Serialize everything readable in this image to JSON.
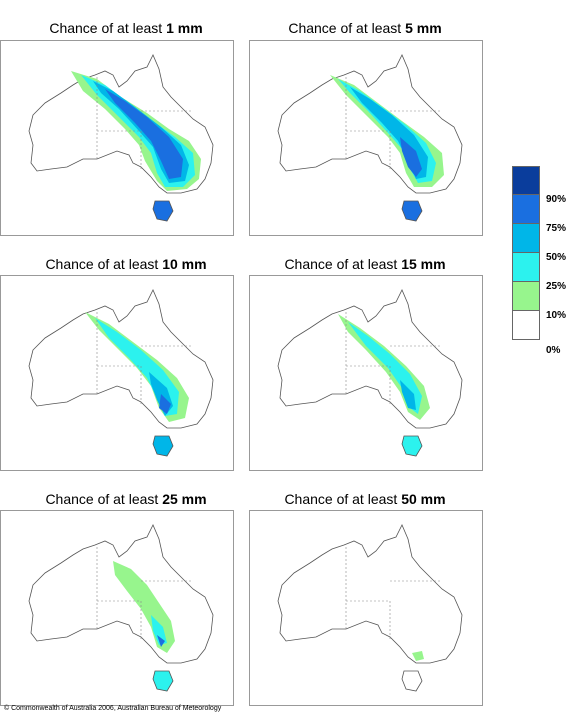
{
  "panels": [
    {
      "prefix": "Chance of at least ",
      "amount": "1 mm"
    },
    {
      "prefix": "Chance of at least ",
      "amount": "5 mm"
    },
    {
      "prefix": "Chance of at least ",
      "amount": "10 mm"
    },
    {
      "prefix": "Chance of at least ",
      "amount": "15 mm"
    },
    {
      "prefix": "Chance of at least ",
      "amount": "25 mm"
    },
    {
      "prefix": "Chance of at least ",
      "amount": "50 mm"
    }
  ],
  "legend": {
    "labels": [
      "90%",
      "75%",
      "50%",
      "25%",
      "10%",
      "0%"
    ],
    "colors": [
      "#0a3d9c",
      "#1a6fe0",
      "#00b6e8",
      "#2cf2ee",
      "#97f58d",
      "#ffffff"
    ]
  },
  "copyright": "© Commonwealth of Australia 2006, Australian Bureau of Meteorology"
}
